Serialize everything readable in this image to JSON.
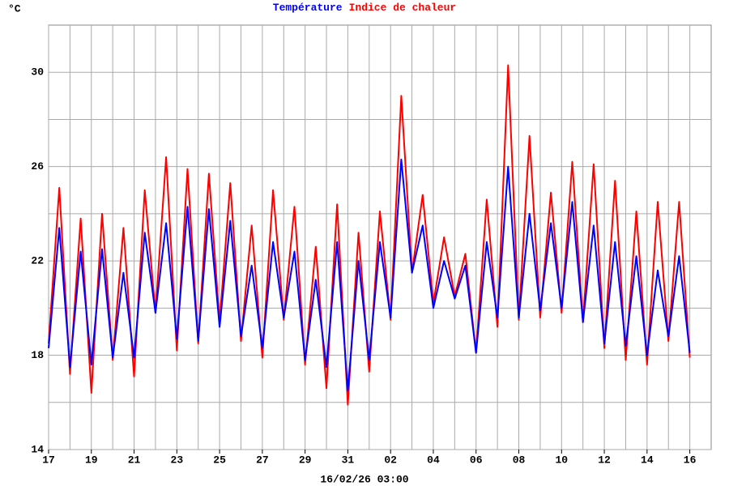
{
  "chart_data": {
    "type": "line",
    "unit_label": "°C",
    "annotation": "16/02/26 03:00",
    "x": [
      0,
      0.5,
      1,
      1.5,
      2,
      2.5,
      3,
      3.5,
      4,
      4.5,
      5,
      5.5,
      6,
      6.5,
      7,
      7.5,
      8,
      8.5,
      9,
      9.5,
      10,
      10.5,
      11,
      11.5,
      12,
      12.5,
      13,
      13.5,
      14,
      14.5,
      15,
      15.5,
      16,
      16.5,
      17,
      17.5,
      18,
      18.5,
      19,
      19.5,
      20,
      20.5,
      21,
      21.5,
      22,
      22.5,
      23,
      23.5,
      24,
      24.5,
      25,
      25.5,
      26,
      26.5,
      27,
      27.5,
      28,
      28.5,
      29,
      29.5,
      30
    ],
    "series": [
      {
        "name": "Indice de chaleur",
        "color": "#ff0000",
        "values": [
          18.5,
          25.1,
          17.2,
          23.8,
          16.4,
          24.0,
          17.8,
          23.4,
          17.1,
          25.0,
          19.8,
          26.4,
          18.2,
          25.9,
          18.5,
          25.7,
          19.4,
          25.3,
          18.6,
          23.5,
          17.9,
          25.0,
          19.5,
          24.3,
          17.6,
          22.6,
          16.6,
          24.4,
          15.9,
          23.2,
          17.3,
          24.1,
          19.5,
          29.0,
          21.5,
          24.8,
          20.2,
          23.0,
          20.5,
          22.3,
          18.1,
          24.6,
          19.2,
          30.3,
          19.5,
          27.3,
          19.6,
          24.9,
          19.8,
          26.2,
          19.4,
          26.1,
          18.3,
          25.4,
          17.8,
          24.1,
          17.6,
          24.5,
          18.6,
          24.5,
          17.9
        ]
      },
      {
        "name": "Température",
        "color": "#0000ff",
        "values": [
          18.3,
          23.4,
          17.5,
          22.4,
          17.6,
          22.5,
          17.9,
          21.5,
          17.9,
          23.2,
          19.8,
          23.6,
          18.7,
          24.3,
          18.6,
          24.2,
          19.2,
          23.7,
          18.8,
          21.8,
          18.3,
          22.8,
          19.6,
          22.4,
          17.8,
          21.2,
          17.5,
          22.8,
          16.5,
          22.0,
          17.8,
          22.8,
          19.6,
          26.3,
          21.5,
          23.5,
          20.0,
          22.0,
          20.4,
          21.8,
          18.1,
          22.8,
          19.6,
          26.0,
          19.6,
          24.0,
          19.9,
          23.6,
          20.0,
          24.5,
          19.4,
          23.5,
          18.5,
          22.8,
          18.4,
          22.2,
          18.0,
          21.6,
          18.8,
          22.2,
          18.1
        ]
      }
    ],
    "legend_order": [
      1,
      0
    ],
    "xlim": [
      0,
      31
    ],
    "xticks": [
      {
        "value": 0,
        "label": "17"
      },
      {
        "value": 2,
        "label": "19"
      },
      {
        "value": 4,
        "label": "21"
      },
      {
        "value": 6,
        "label": "23"
      },
      {
        "value": 8,
        "label": "25"
      },
      {
        "value": 10,
        "label": "27"
      },
      {
        "value": 12,
        "label": "29"
      },
      {
        "value": 14,
        "label": "31"
      },
      {
        "value": 16,
        "label": "02"
      },
      {
        "value": 18,
        "label": "04"
      },
      {
        "value": 20,
        "label": "06"
      },
      {
        "value": 22,
        "label": "08"
      },
      {
        "value": 24,
        "label": "10"
      },
      {
        "value": 26,
        "label": "12"
      },
      {
        "value": 28,
        "label": "14"
      },
      {
        "value": 30,
        "label": "16"
      }
    ],
    "minor_xticks": [
      1,
      3,
      5,
      7,
      9,
      11,
      13,
      15,
      17,
      19,
      21,
      23,
      25,
      27,
      29
    ],
    "ylim": [
      14,
      32
    ],
    "yticks": [
      14,
      18,
      22,
      26,
      30
    ],
    "minor_yticks": [
      16,
      20,
      24,
      28
    ],
    "grid": true
  }
}
